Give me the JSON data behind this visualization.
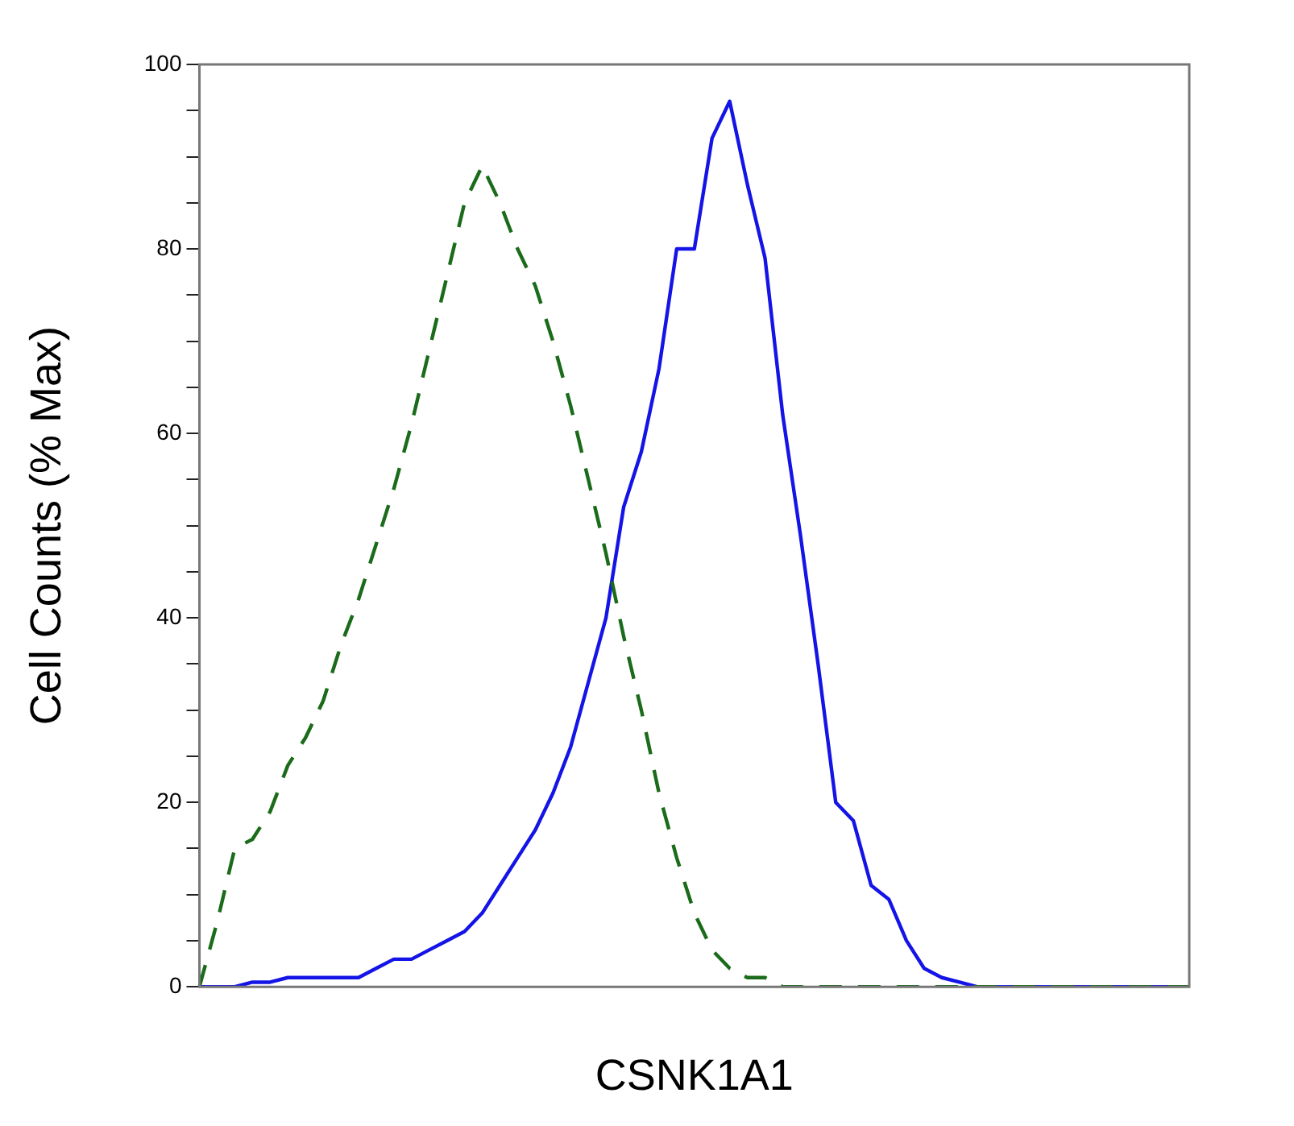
{
  "chart_data": {
    "type": "line",
    "xlabel": "CSNK1A1",
    "ylabel": "Cell Counts (% Max)",
    "categories": [
      null,
      null,
      null,
      null,
      null,
      null,
      null,
      null,
      null,
      null,
      null,
      null,
      null,
      null,
      null,
      null,
      null,
      null,
      null,
      null,
      null,
      null,
      null,
      null,
      null,
      null,
      null,
      null,
      null,
      null,
      null,
      null,
      null,
      null,
      null,
      null,
      null,
      null,
      null,
      null,
      null,
      null,
      null,
      null,
      null,
      null,
      null,
      null,
      null,
      null,
      null,
      null,
      null,
      null,
      null,
      null,
      null
    ],
    "ylim": [
      0,
      100
    ],
    "yticks": [
      0,
      {
        "value": 5,
        "label": null
      },
      {
        "value": 10,
        "label": null
      },
      {
        "value": 15,
        "label": null
      },
      20,
      {
        "value": 25,
        "label": null
      },
      {
        "value": 30,
        "label": null
      },
      {
        "value": 35,
        "label": null
      },
      40,
      {
        "value": 45,
        "label": null
      },
      {
        "value": 50,
        "label": null
      },
      {
        "value": 55,
        "label": null
      },
      60,
      {
        "value": 65,
        "label": null
      },
      {
        "value": 70,
        "label": null
      },
      {
        "value": 75,
        "label": null
      },
      80,
      {
        "value": 85,
        "label": null
      },
      {
        "value": 90,
        "label": null
      },
      {
        "value": 95,
        "label": null
      },
      100
    ],
    "grid": false,
    "legend": false,
    "marker": "none",
    "series": [
      {
        "color": "#1a6b1a",
        "line_style": "dashed",
        "values": [
          0,
          7,
          15,
          16,
          19,
          24,
          27,
          31,
          37,
          42,
          48,
          54,
          61,
          69,
          77,
          85,
          89,
          85,
          80,
          76,
          70,
          63,
          55,
          47,
          38,
          30,
          21,
          14,
          8,
          4,
          2,
          1,
          1,
          0,
          0,
          0,
          0,
          0,
          0,
          0,
          0,
          0,
          0,
          0,
          0,
          0,
          0,
          0,
          0,
          0,
          0,
          0,
          0,
          0,
          0,
          0,
          0
        ]
      },
      {
        "color": "#1414e6",
        "line_style": "solid",
        "values": [
          0,
          0,
          0,
          0.5,
          0.5,
          1,
          1,
          1,
          1,
          1,
          2,
          3,
          3,
          4,
          5,
          6,
          8,
          11,
          14,
          17,
          21,
          26,
          33,
          40,
          52,
          58,
          67,
          80,
          80,
          92,
          96,
          87,
          79,
          62,
          49,
          35,
          20,
          18,
          11,
          9.5,
          5,
          2,
          1,
          0.5,
          0,
          0,
          0,
          0,
          0,
          0,
          0,
          0,
          0,
          0,
          0,
          0,
          0
        ]
      }
    ]
  }
}
